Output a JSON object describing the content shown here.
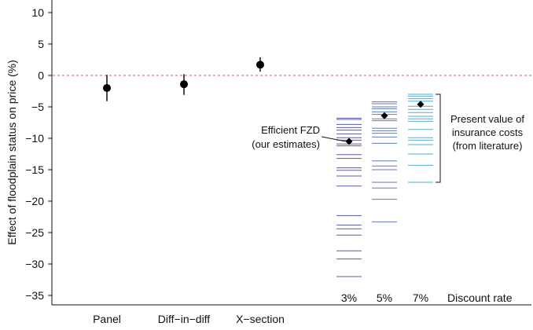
{
  "chart_data": {
    "type": "scatter",
    "ylabel": "Effect of floodplain status on price (%)",
    "ylim": [
      -36.5,
      12
    ],
    "yticks": [
      10,
      5,
      0,
      -5,
      -10,
      -15,
      -20,
      -25,
      -30,
      -35
    ],
    "reference_line": {
      "y": 0,
      "color": "#d9534f",
      "style": "dashed"
    },
    "estimates": [
      {
        "label": "Panel",
        "value": -2.0,
        "ci_low": -4.1,
        "ci_high": 0.1
      },
      {
        "label": "Diff−in−diff",
        "value": -1.4,
        "ci_low": -3.1,
        "ci_high": 0.2
      },
      {
        "label": "X−section",
        "value": 1.7,
        "ci_low": 0.6,
        "ci_high": 2.9
      }
    ],
    "insurance_costs": {
      "axis_title": "Discount rate",
      "groups": [
        {
          "label": "3%",
          "color": "#3a3f9e",
          "efficient_fzd": -10.5,
          "lines": [
            -6.8,
            -7.0,
            -7.8,
            -8.3,
            -8.7,
            -9.3,
            -9.9,
            -10.3,
            -10.9,
            -11.2,
            -12.6,
            -13.2,
            -14.7,
            -15.1,
            -16.0,
            -17.6,
            -22.3,
            -23.8,
            -24.4,
            -25.4,
            -27.9,
            -29.2,
            -32.0
          ]
        },
        {
          "label": "5%",
          "color": "#3f63b8",
          "efficient_fzd": -6.4,
          "lines": [
            -4.2,
            -4.5,
            -5.0,
            -5.3,
            -5.8,
            -6.2,
            -6.9,
            -7.2,
            -8.4,
            -8.8,
            -9.2,
            -9.8,
            -10.8,
            -13.6,
            -14.4,
            -15.0,
            -17.0,
            -17.9,
            -19.7,
            -23.3
          ]
        },
        {
          "label": "7%",
          "color": "#2b9fd6",
          "efficient_fzd": -4.6,
          "lines": [
            -3.0,
            -3.3,
            -3.7,
            -4.1,
            -4.9,
            -5.4,
            -5.9,
            -6.5,
            -6.9,
            -7.3,
            -8.6,
            -9.9,
            -10.3,
            -11.0,
            -12.5,
            -14.3,
            -17.0
          ]
        }
      ]
    },
    "annotations": {
      "efficient": [
        "Efficient FZD",
        "(our estimates)"
      ],
      "present_value": [
        "Present value of",
        "insurance costs",
        "(from literature)"
      ]
    }
  }
}
